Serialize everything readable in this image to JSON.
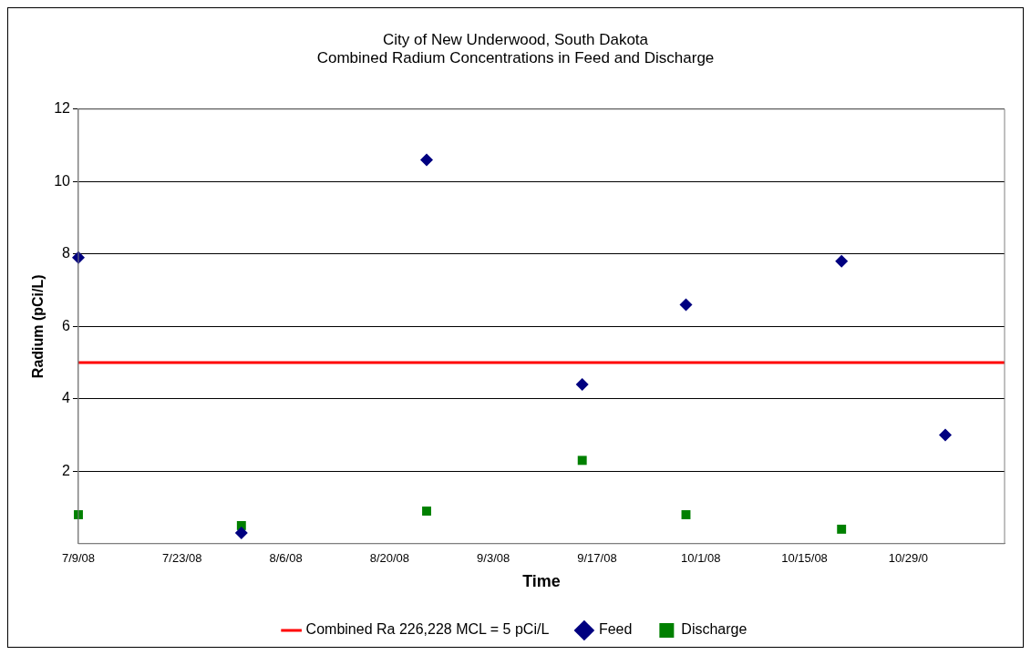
{
  "chart_data": {
    "type": "scatter",
    "title": [
      "City of New Underwood, South Dakota",
      "Combined Radium Concentrations in Feed and Discharge"
    ],
    "xlabel": "Time",
    "ylabel": "Radium (pCi/L)",
    "series": [
      {
        "name": "Feed",
        "color": "#000080",
        "marker": "diamond",
        "x": [
          "--07-09",
          "--07-31",
          "--08-25",
          "--09-15",
          "--09-29",
          "--10-20",
          "--11-03"
        ],
        "values": [
          7.9,
          0.3,
          10.6,
          4.4,
          6.6,
          7.8,
          3.0
        ]
      },
      {
        "name": "Discharge",
        "color": "#008000",
        "marker": "square",
        "x": [
          "--07-09",
          "--07-31",
          "--08-25",
          "--09-15",
          "--09-29",
          "--10-20"
        ],
        "values": [
          0.8,
          0.5,
          0.9,
          2.3,
          0.8,
          0.4
        ]
      }
    ],
    "xlim": [
      "--07-09",
      "--11-11"
    ],
    "xticks": [
      {
        "value": "--07-09",
        "label": "7/9/08"
      },
      {
        "value": "--07-23",
        "label": "7/23/08"
      },
      {
        "value": "--08-06",
        "label": "8/6/08"
      },
      {
        "value": "--08-20",
        "label": "8/20/08"
      },
      {
        "value": "--09-03",
        "label": "9/3/08"
      },
      {
        "value": "--09-17",
        "label": "9/17/08"
      },
      {
        "value": "--10-01",
        "label": "10/1/08"
      },
      {
        "value": "--10-15",
        "label": "10/15/08"
      },
      {
        "value": "--10-29",
        "label": "10/29/0"
      }
    ],
    "ylim": [
      0,
      12
    ],
    "yticks": [
      2,
      4,
      6,
      8,
      10,
      12
    ],
    "ref_lines": [
      {
        "axis": "y",
        "value": 5,
        "label": "Combined Ra 226,228 MCL = 5 pCi/L",
        "color": "#ff0000"
      }
    ],
    "grid": "y",
    "legend": "bottom"
  }
}
